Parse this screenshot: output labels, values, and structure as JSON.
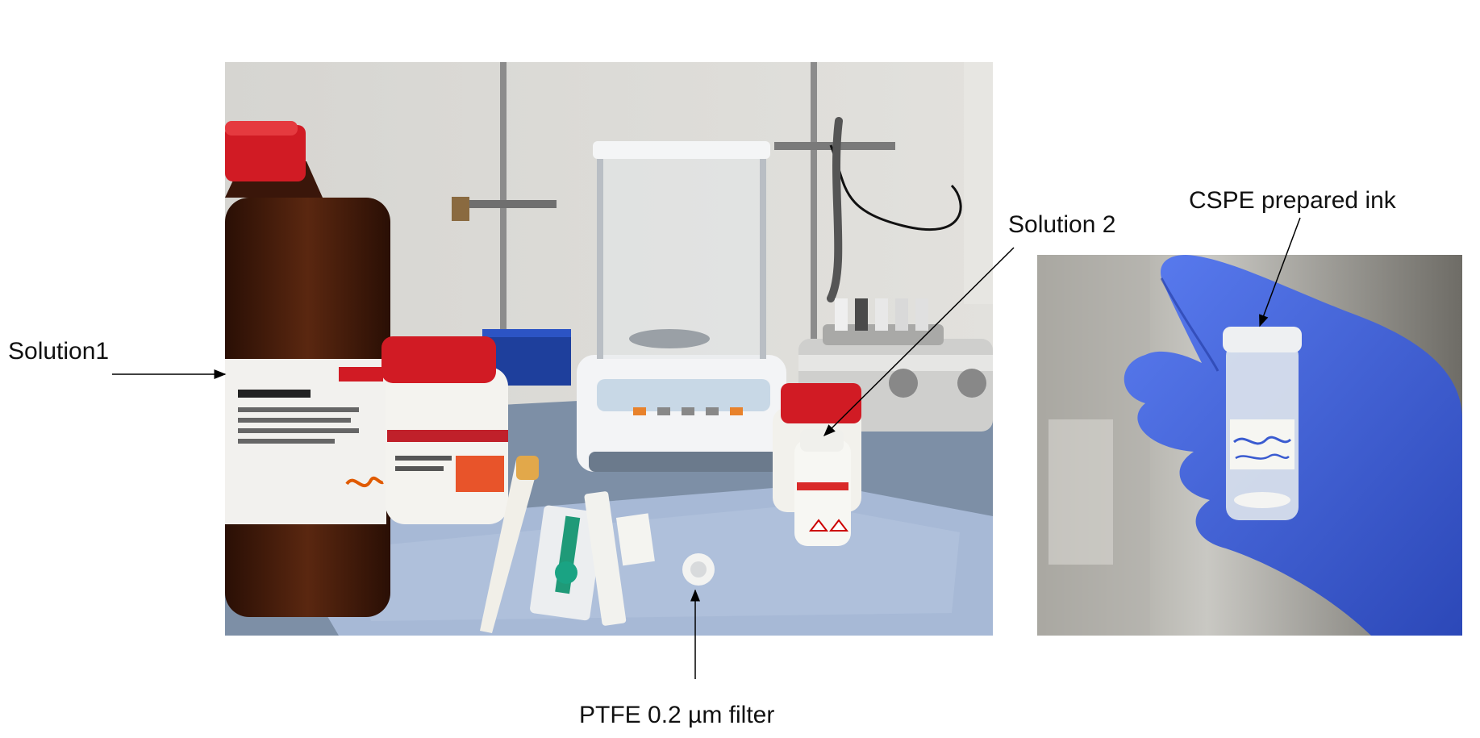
{
  "annotations": {
    "solution1": "Solution1",
    "solution2": "Solution 2",
    "cspe_ink": "CSPE prepared ink",
    "ptfe_filter": "PTFE 0.2 µm filter"
  },
  "photos": {
    "lab_bench": "laboratory bench with reagent bottles, analytical balance, pipette, syringe and filter",
    "vial": "gloved hand holding a labeled glass vial of ink"
  },
  "vial_label_handwriting": "Solution CSPE for Dart use",
  "colors": {
    "wall": "#d9d8d4",
    "bench_cloth": "#9fb3d2",
    "amber_bottle": "#4a1e0c",
    "red_cap": "#d11b24",
    "glove": "#3f63d8",
    "arrow": "#000000"
  }
}
